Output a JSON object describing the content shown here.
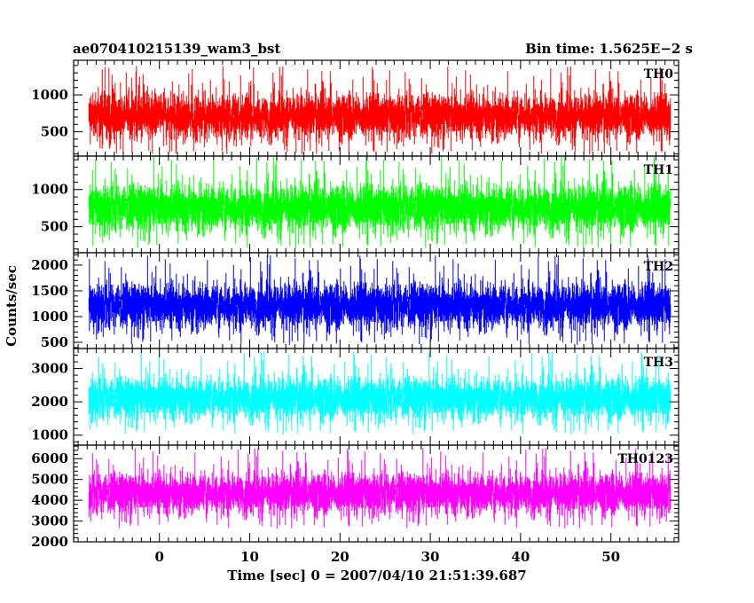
{
  "chart_data": {
    "type": "line",
    "title_left": "ae070410215139_wam3_bst",
    "title_right": "Bin time: 1.5625E−2 s",
    "xlabel": "Time [sec] 0 = 2007/04/10 21:51:39.687",
    "ylabel": "Counts/sec",
    "xlim": [
      -9.5,
      57.5
    ],
    "x_data_range": [
      -7.8,
      56.6
    ],
    "xticks": [
      0,
      10,
      20,
      30,
      40,
      50
    ],
    "xtick_labels": [
      "0",
      "10",
      "20",
      "30",
      "40",
      "50"
    ],
    "grid": false,
    "panels": [
      {
        "name": "TH0",
        "color": "#ff0000",
        "ylim": [
          170,
          1470
        ],
        "yticks": [
          500,
          1000
        ],
        "ytick_labels": [
          "500",
          "1000"
        ],
        "minor_step": 100,
        "signal": {
          "mean": 720,
          "spread": 240,
          "min": 170,
          "max": 1460
        }
      },
      {
        "name": "TH1",
        "color": "#00ff00",
        "ylim": [
          150,
          1450
        ],
        "yticks": [
          500,
          1000
        ],
        "ytick_labels": [
          "500",
          "1000"
        ],
        "minor_step": 100,
        "signal": {
          "mean": 760,
          "spread": 250,
          "min": 150,
          "max": 1440
        }
      },
      {
        "name": "TH2",
        "color": "#0000ff",
        "ylim": [
          380,
          2240
        ],
        "yticks": [
          500,
          1000,
          1500,
          2000
        ],
        "ytick_labels": [
          "500",
          "1000",
          "1500",
          "2000"
        ],
        "minor_step": 100,
        "signal": {
          "mean": 1220,
          "spread": 350,
          "min": 380,
          "max": 2230
        }
      },
      {
        "name": "TH3",
        "color": "#00ffff",
        "ylim": [
          700,
          3600
        ],
        "yticks": [
          1000,
          2000,
          3000
        ],
        "ytick_labels": [
          "1000",
          "2000",
          "3000"
        ],
        "minor_step": 200,
        "signal": {
          "mean": 2120,
          "spread": 500,
          "min": 700,
          "max": 3590
        }
      },
      {
        "name": "TH0123",
        "color": "#ff00ff",
        "ylim": [
          2000,
          6650
        ],
        "yticks": [
          2000,
          3000,
          4000,
          5000,
          6000
        ],
        "ytick_labels": [
          "2000",
          "3000",
          "4000",
          "5000",
          "6000"
        ],
        "minor_step": 200,
        "signal": {
          "mean": 4350,
          "spread": 780,
          "min": 2000,
          "max": 6640
        }
      }
    ]
  }
}
